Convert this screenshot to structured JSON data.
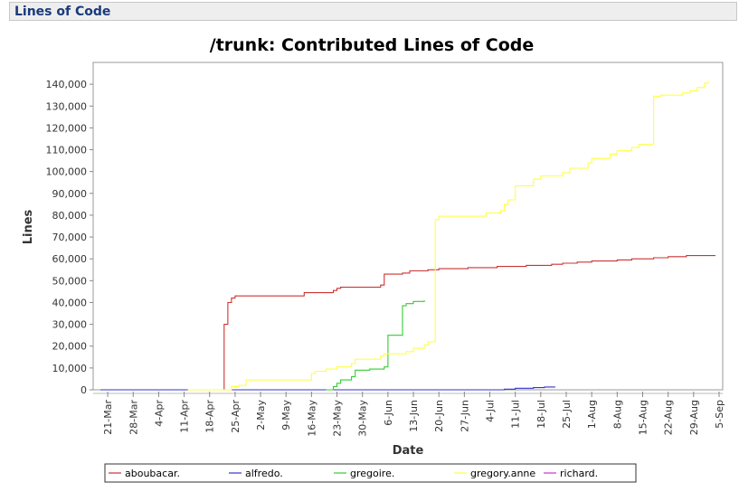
{
  "page": {
    "header_title": "Lines of Code"
  },
  "chart_data": {
    "type": "line",
    "title": "/trunk: Contributed Lines of Code",
    "xlabel": "Date",
    "ylabel": "Lines",
    "x_range": [
      "2008-03-17",
      "2008-09-06"
    ],
    "ylim": [
      0,
      150000
    ],
    "y_ticks": [
      0,
      10000,
      20000,
      30000,
      40000,
      50000,
      60000,
      70000,
      80000,
      90000,
      100000,
      110000,
      120000,
      130000,
      140000
    ],
    "y_tick_labels": [
      "0",
      "10,000",
      "20,000",
      "30,000",
      "40,000",
      "50,000",
      "60,000",
      "70,000",
      "80,000",
      "90,000",
      "100,000",
      "110,000",
      "120,000",
      "130,000",
      "140,000"
    ],
    "x_ticks": [
      "2008-03-21",
      "2008-03-28",
      "2008-04-04",
      "2008-04-11",
      "2008-04-18",
      "2008-04-25",
      "2008-05-02",
      "2008-05-09",
      "2008-05-16",
      "2008-05-23",
      "2008-05-30",
      "2008-06-06",
      "2008-06-13",
      "2008-06-20",
      "2008-06-27",
      "2008-07-04",
      "2008-07-11",
      "2008-07-18",
      "2008-07-25",
      "2008-08-01",
      "2008-08-08",
      "2008-08-15",
      "2008-08-22",
      "2008-08-29",
      "2008-09-05"
    ],
    "x_tick_labels": [
      "21-Mar",
      "28-Mar",
      "4-Apr",
      "11-Apr",
      "18-Apr",
      "25-Apr",
      "2-May",
      "9-May",
      "16-May",
      "23-May",
      "30-May",
      "6-Jun",
      "13-Jun",
      "20-Jun",
      "27-Jun",
      "4-Jul",
      "11-Jul",
      "18-Jul",
      "25-Jul",
      "1-Aug",
      "8-Aug",
      "15-Aug",
      "22-Aug",
      "29-Aug",
      "5-Sep"
    ],
    "grid": false,
    "legend_position": "bottom",
    "series": [
      {
        "name": "aboubacar.",
        "color": "#cc3333",
        "points": [
          [
            "2008-03-19",
            0
          ],
          [
            "2008-04-22",
            0
          ],
          [
            "2008-04-22",
            30000
          ],
          [
            "2008-04-23",
            34000
          ],
          [
            "2008-04-23",
            40000
          ],
          [
            "2008-04-24",
            42000
          ],
          [
            "2008-04-25",
            43000
          ],
          [
            "2008-05-14",
            43000
          ],
          [
            "2008-05-14",
            44500
          ],
          [
            "2008-05-21",
            44500
          ],
          [
            "2008-05-22",
            45500
          ],
          [
            "2008-05-23",
            46500
          ],
          [
            "2008-05-24",
            47000
          ],
          [
            "2008-06-03",
            47000
          ],
          [
            "2008-06-04",
            48000
          ],
          [
            "2008-06-05",
            53000
          ],
          [
            "2008-06-10",
            53500
          ],
          [
            "2008-06-12",
            54500
          ],
          [
            "2008-06-17",
            55000
          ],
          [
            "2008-06-20",
            55500
          ],
          [
            "2008-06-28",
            56000
          ],
          [
            "2008-07-06",
            56500
          ],
          [
            "2008-07-14",
            57000
          ],
          [
            "2008-07-21",
            57500
          ],
          [
            "2008-07-24",
            58000
          ],
          [
            "2008-07-28",
            58500
          ],
          [
            "2008-08-01",
            59000
          ],
          [
            "2008-08-08",
            59500
          ],
          [
            "2008-08-12",
            60000
          ],
          [
            "2008-08-18",
            60500
          ],
          [
            "2008-08-22",
            61000
          ],
          [
            "2008-08-27",
            61500
          ],
          [
            "2008-09-04",
            61500
          ]
        ]
      },
      {
        "name": "alfredo.",
        "color": "#3333cc",
        "points": [
          [
            "2008-03-19",
            0
          ],
          [
            "2008-07-05",
            0
          ],
          [
            "2008-07-08",
            300
          ],
          [
            "2008-07-11",
            700
          ],
          [
            "2008-07-16",
            1000
          ],
          [
            "2008-07-19",
            1300
          ],
          [
            "2008-07-22",
            1300
          ]
        ]
      },
      {
        "name": "gregoire.",
        "color": "#33cc33",
        "points": [
          [
            "2008-05-20",
            0
          ],
          [
            "2008-05-22",
            1500
          ],
          [
            "2008-05-23",
            3000
          ],
          [
            "2008-05-24",
            4500
          ],
          [
            "2008-05-27",
            6000
          ],
          [
            "2008-05-28",
            9000
          ],
          [
            "2008-06-01",
            9500
          ],
          [
            "2008-06-05",
            10500
          ],
          [
            "2008-06-06",
            25000
          ],
          [
            "2008-06-10",
            25000
          ],
          [
            "2008-06-10",
            38500
          ],
          [
            "2008-06-11",
            39500
          ],
          [
            "2008-06-13",
            40500
          ],
          [
            "2008-06-16",
            41000
          ]
        ]
      },
      {
        "name": "gregory.anne",
        "color": "#ffff44",
        "points": [
          [
            "2008-04-12",
            0
          ],
          [
            "2008-04-23",
            0
          ],
          [
            "2008-04-24",
            1500
          ],
          [
            "2008-04-26",
            2000
          ],
          [
            "2008-04-28",
            4500
          ],
          [
            "2008-05-15",
            4500
          ],
          [
            "2008-05-16",
            7500
          ],
          [
            "2008-05-17",
            8500
          ],
          [
            "2008-05-20",
            9500
          ],
          [
            "2008-05-23",
            10500
          ],
          [
            "2008-05-27",
            12000
          ],
          [
            "2008-05-28",
            14000
          ],
          [
            "2008-06-04",
            15500
          ],
          [
            "2008-06-05",
            16500
          ],
          [
            "2008-06-11",
            17500
          ],
          [
            "2008-06-13",
            19000
          ],
          [
            "2008-06-16",
            20500
          ],
          [
            "2008-06-17",
            22000
          ],
          [
            "2008-06-18",
            22000
          ],
          [
            "2008-06-19",
            78000
          ],
          [
            "2008-06-20",
            79500
          ],
          [
            "2008-07-02",
            79500
          ],
          [
            "2008-07-03",
            81000
          ],
          [
            "2008-07-07",
            82000
          ],
          [
            "2008-07-08",
            85000
          ],
          [
            "2008-07-09",
            87000
          ],
          [
            "2008-07-11",
            93500
          ],
          [
            "2008-07-15",
            93500
          ],
          [
            "2008-07-16",
            96500
          ],
          [
            "2008-07-18",
            98000
          ],
          [
            "2008-07-24",
            99500
          ],
          [
            "2008-07-26",
            101500
          ],
          [
            "2008-07-31",
            104000
          ],
          [
            "2008-08-01",
            106000
          ],
          [
            "2008-08-06",
            108000
          ],
          [
            "2008-08-08",
            109500
          ],
          [
            "2008-08-12",
            111000
          ],
          [
            "2008-08-14",
            112500
          ],
          [
            "2008-08-18",
            112500
          ],
          [
            "2008-08-18",
            134500
          ],
          [
            "2008-08-20",
            135000
          ],
          [
            "2008-08-26",
            136000
          ],
          [
            "2008-08-28",
            137000
          ],
          [
            "2008-08-30",
            138500
          ],
          [
            "2008-09-01",
            140500
          ],
          [
            "2008-09-02",
            141500
          ]
        ]
      },
      {
        "name": "richard.",
        "color": "#cc33cc",
        "points": []
      }
    ]
  }
}
